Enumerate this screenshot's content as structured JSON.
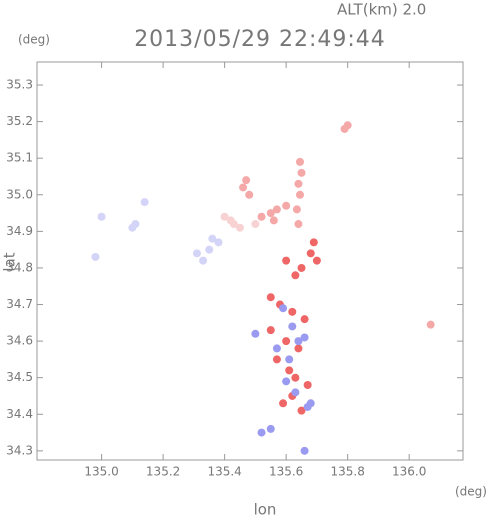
{
  "chart_data": {
    "type": "scatter",
    "title": "2013/05/29 22:49:44",
    "subtitle": "ALT(km) 2.0",
    "x_label": "lon",
    "y_label": "lat",
    "x_unit": "(deg)",
    "y_unit": "(deg)",
    "xlim": [
      134.79,
      136.175
    ],
    "ylim": [
      34.275,
      35.363
    ],
    "xticks": [
      {
        "value": 135.0,
        "label": "135.0"
      },
      135.2,
      135.4,
      135.6,
      135.8,
      {
        "value": 136.0,
        "label": "136.0"
      }
    ],
    "yticks": [
      34.3,
      34.4,
      34.5,
      34.6,
      34.7,
      34.8,
      34.9,
      {
        "value": 35.0,
        "label": "35.0"
      },
      35.1,
      35.2,
      35.3
    ],
    "series": [
      {
        "color": "#f5a8a8",
        "x": [
          135.645,
          135.65,
          135.64,
          135.645,
          135.635,
          135.64,
          135.55,
          135.56,
          135.57,
          135.47,
          135.46,
          135.48,
          135.8,
          135.79,
          136.07,
          135.52,
          135.6
        ],
        "y": [
          35.09,
          35.06,
          35.03,
          35.0,
          34.96,
          34.92,
          34.95,
          34.93,
          34.96,
          35.04,
          35.02,
          35.0,
          35.19,
          35.18,
          34.645,
          34.94,
          34.97
        ]
      },
      {
        "color": "#f8d2d2",
        "x": [
          135.43,
          135.42,
          135.45,
          135.4,
          135.5
        ],
        "y": [
          34.92,
          34.93,
          34.91,
          34.94,
          34.92
        ]
      },
      {
        "color": "#ee6666",
        "x": [
          135.6,
          135.63,
          135.68,
          135.7,
          135.65,
          135.58,
          135.62,
          135.66,
          135.55,
          135.6,
          135.64,
          135.57,
          135.61,
          135.67,
          135.62,
          135.59,
          135.65,
          135.63,
          135.55,
          135.69
        ],
        "y": [
          34.82,
          34.78,
          34.84,
          34.82,
          34.8,
          34.7,
          34.68,
          34.66,
          34.63,
          34.6,
          34.58,
          34.55,
          34.52,
          34.48,
          34.45,
          34.43,
          34.41,
          34.5,
          34.72,
          34.87
        ]
      },
      {
        "color": "#9a9af0",
        "x": [
          135.59,
          135.62,
          135.66,
          135.57,
          135.61,
          135.64,
          135.6,
          135.63,
          135.68,
          135.67,
          135.66,
          135.52,
          135.55,
          135.5
        ],
        "y": [
          34.69,
          34.64,
          34.61,
          34.58,
          34.55,
          34.6,
          34.49,
          34.46,
          34.43,
          34.42,
          34.3,
          34.35,
          34.36,
          34.62
        ]
      },
      {
        "color": "#d4d4f8",
        "x": [
          134.98,
          135.0,
          135.1,
          135.11,
          135.14,
          135.35,
          135.38,
          135.33,
          135.31,
          135.36
        ],
        "y": [
          34.83,
          34.94,
          34.91,
          34.92,
          34.98,
          34.85,
          34.87,
          34.82,
          34.84,
          34.88
        ]
      }
    ]
  }
}
